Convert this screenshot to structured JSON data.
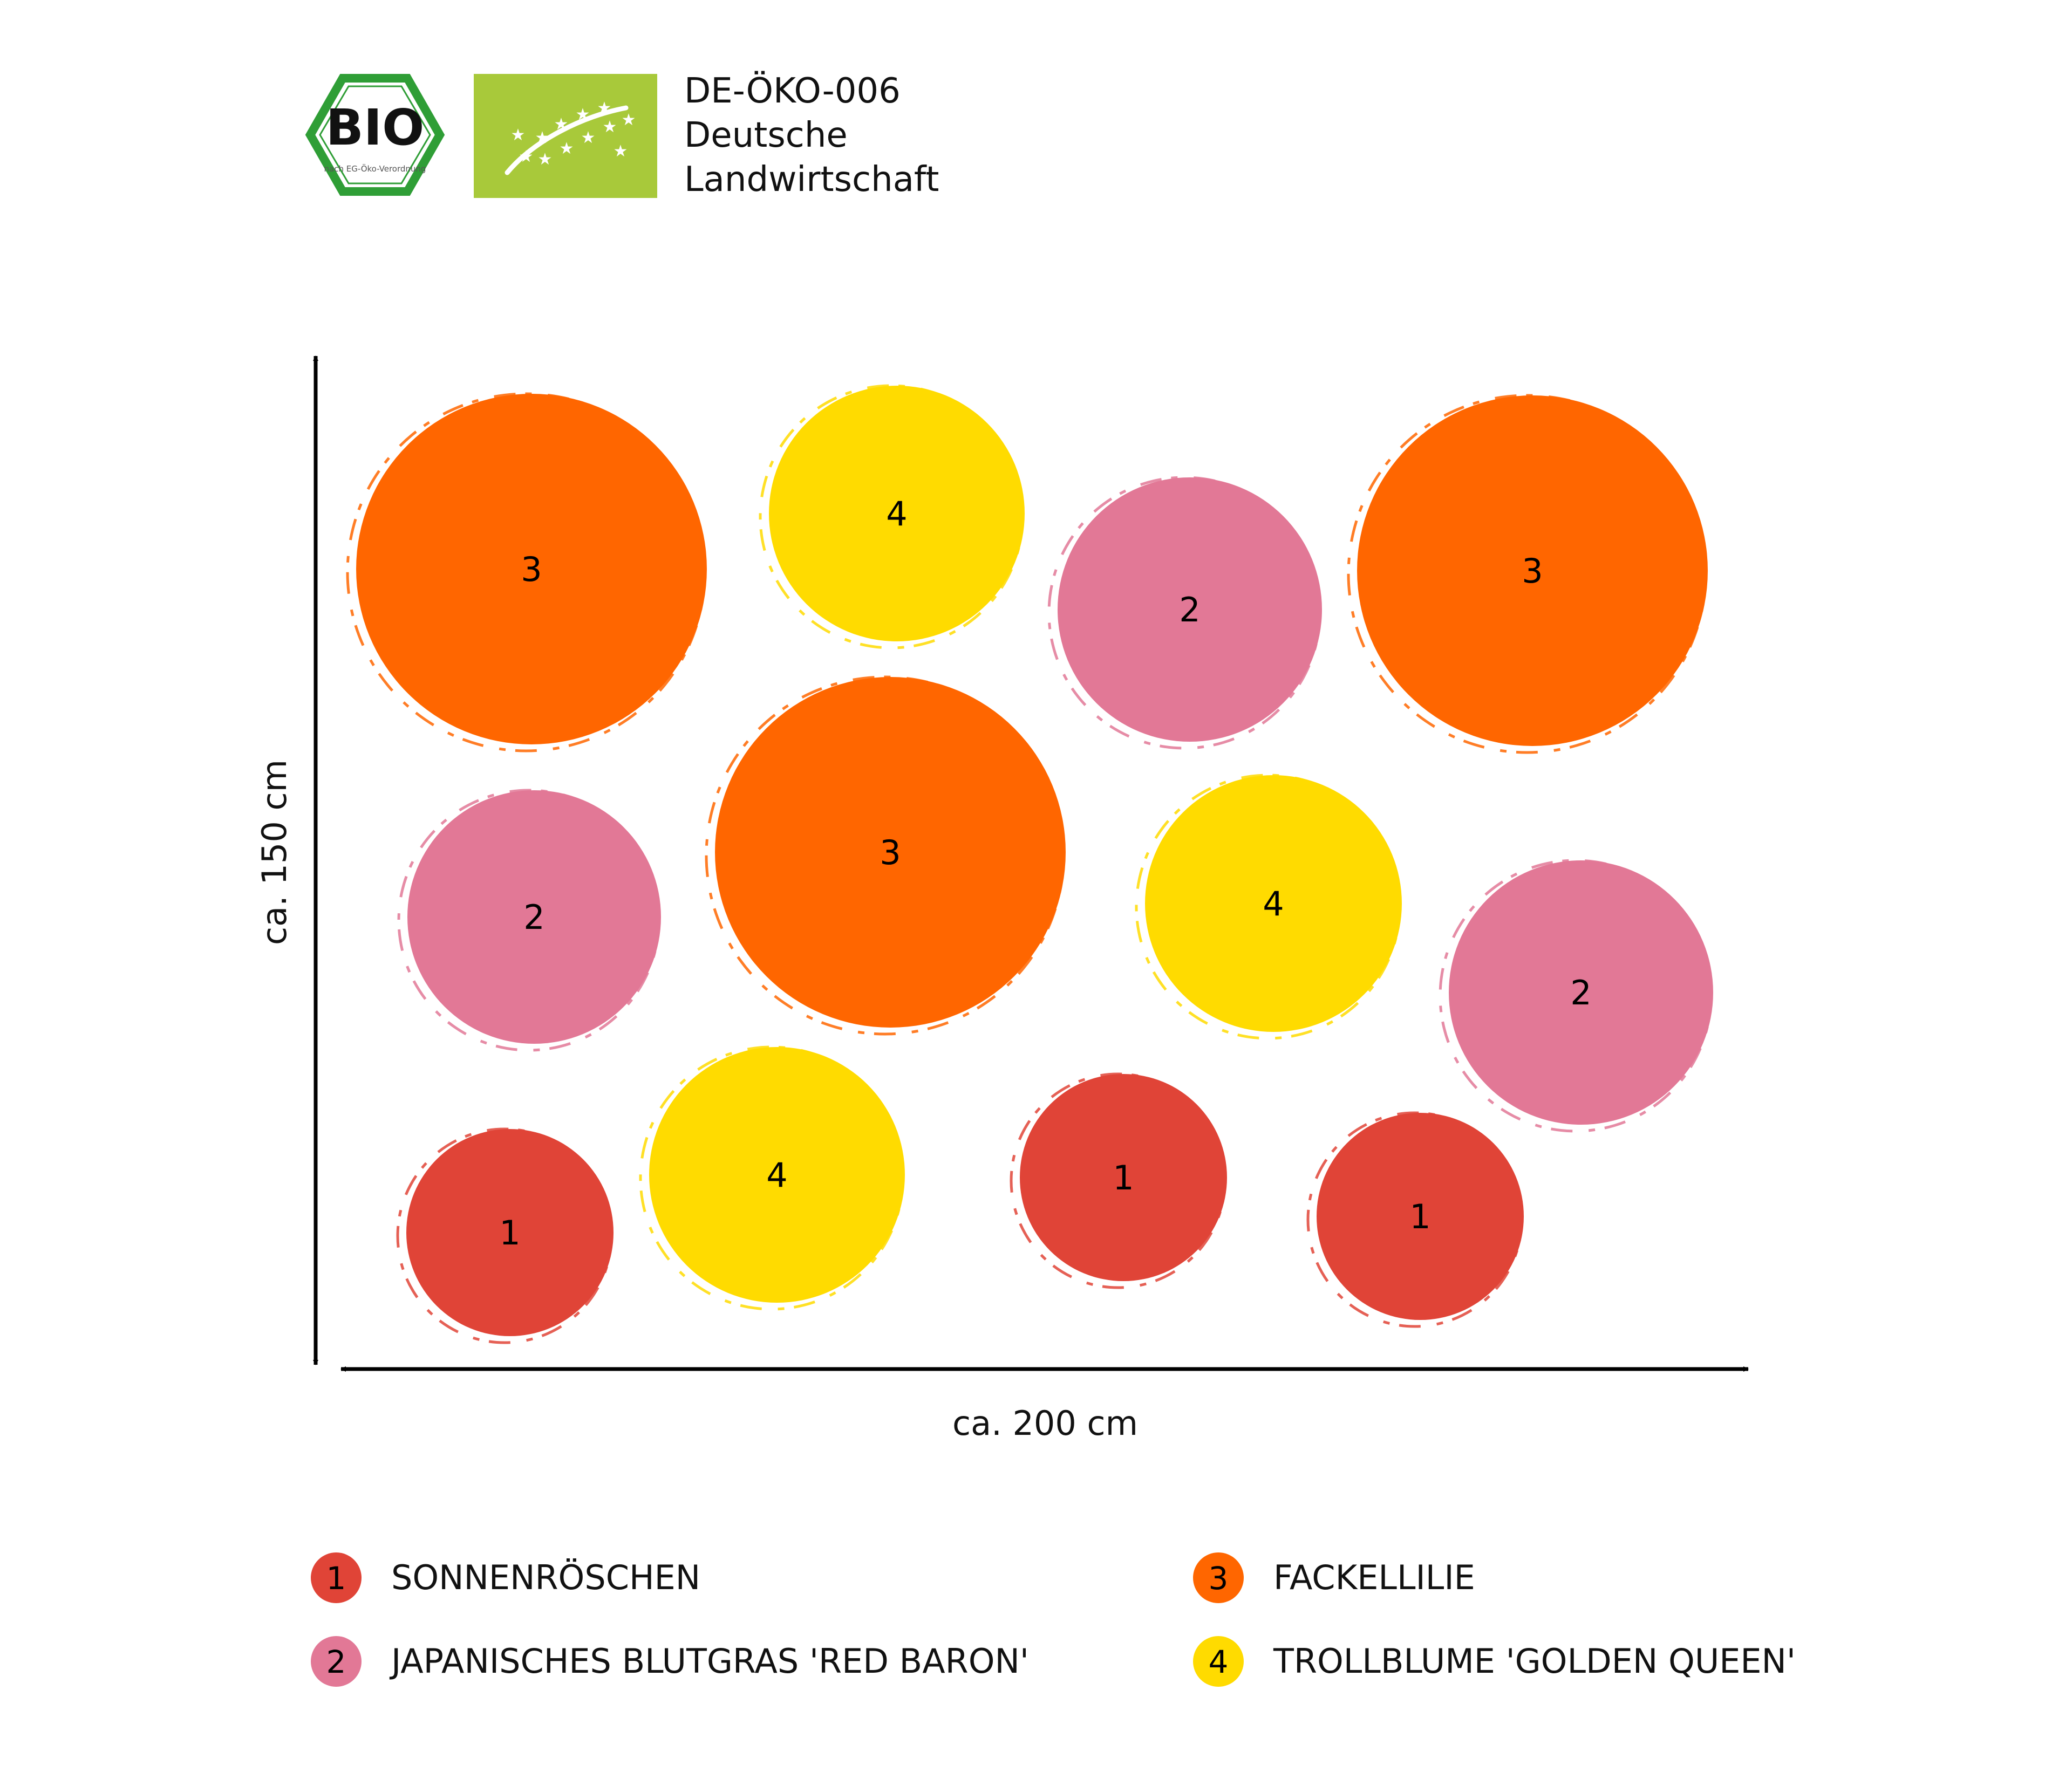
{
  "header": {
    "bio_seal": {
      "word": "BIO",
      "subtext": "nach EG-Öko-Verordnung",
      "icon": "bio-hexagon-seal-icon",
      "color": "#2f9e36"
    },
    "eu_leaf": {
      "icon": "eu-organic-leaf-icon",
      "color": "#a8c93a"
    },
    "certification": {
      "code": "DE-ÖKO-006",
      "line2": "Deutsche",
      "line3": "Landwirtschaft"
    }
  },
  "dimensions": {
    "height_label": "ca. 150 cm",
    "width_label": "ca. 200 cm"
  },
  "plants": [
    {
      "number": "1",
      "name": "SONNENRÖSCHEN",
      "color": "#e04437"
    },
    {
      "number": "2",
      "name": "JAPANISCHES BLUTGRAS 'RED BARON'",
      "color": "#e27896"
    },
    {
      "number": "3",
      "name": "FACKELLILIE",
      "color": "#ff6600"
    },
    {
      "number": "4",
      "name": "TROLLBLUME 'GOLDEN QUEEN'",
      "color": "#ffdb00"
    }
  ],
  "planting_plan": [
    {
      "label": "3"
    },
    {
      "label": "4"
    },
    {
      "label": "2"
    },
    {
      "label": "3"
    },
    {
      "label": "2"
    },
    {
      "label": "3"
    },
    {
      "label": "4"
    },
    {
      "label": "2"
    },
    {
      "label": "1"
    },
    {
      "label": "4"
    },
    {
      "label": "1"
    },
    {
      "label": "1"
    }
  ]
}
